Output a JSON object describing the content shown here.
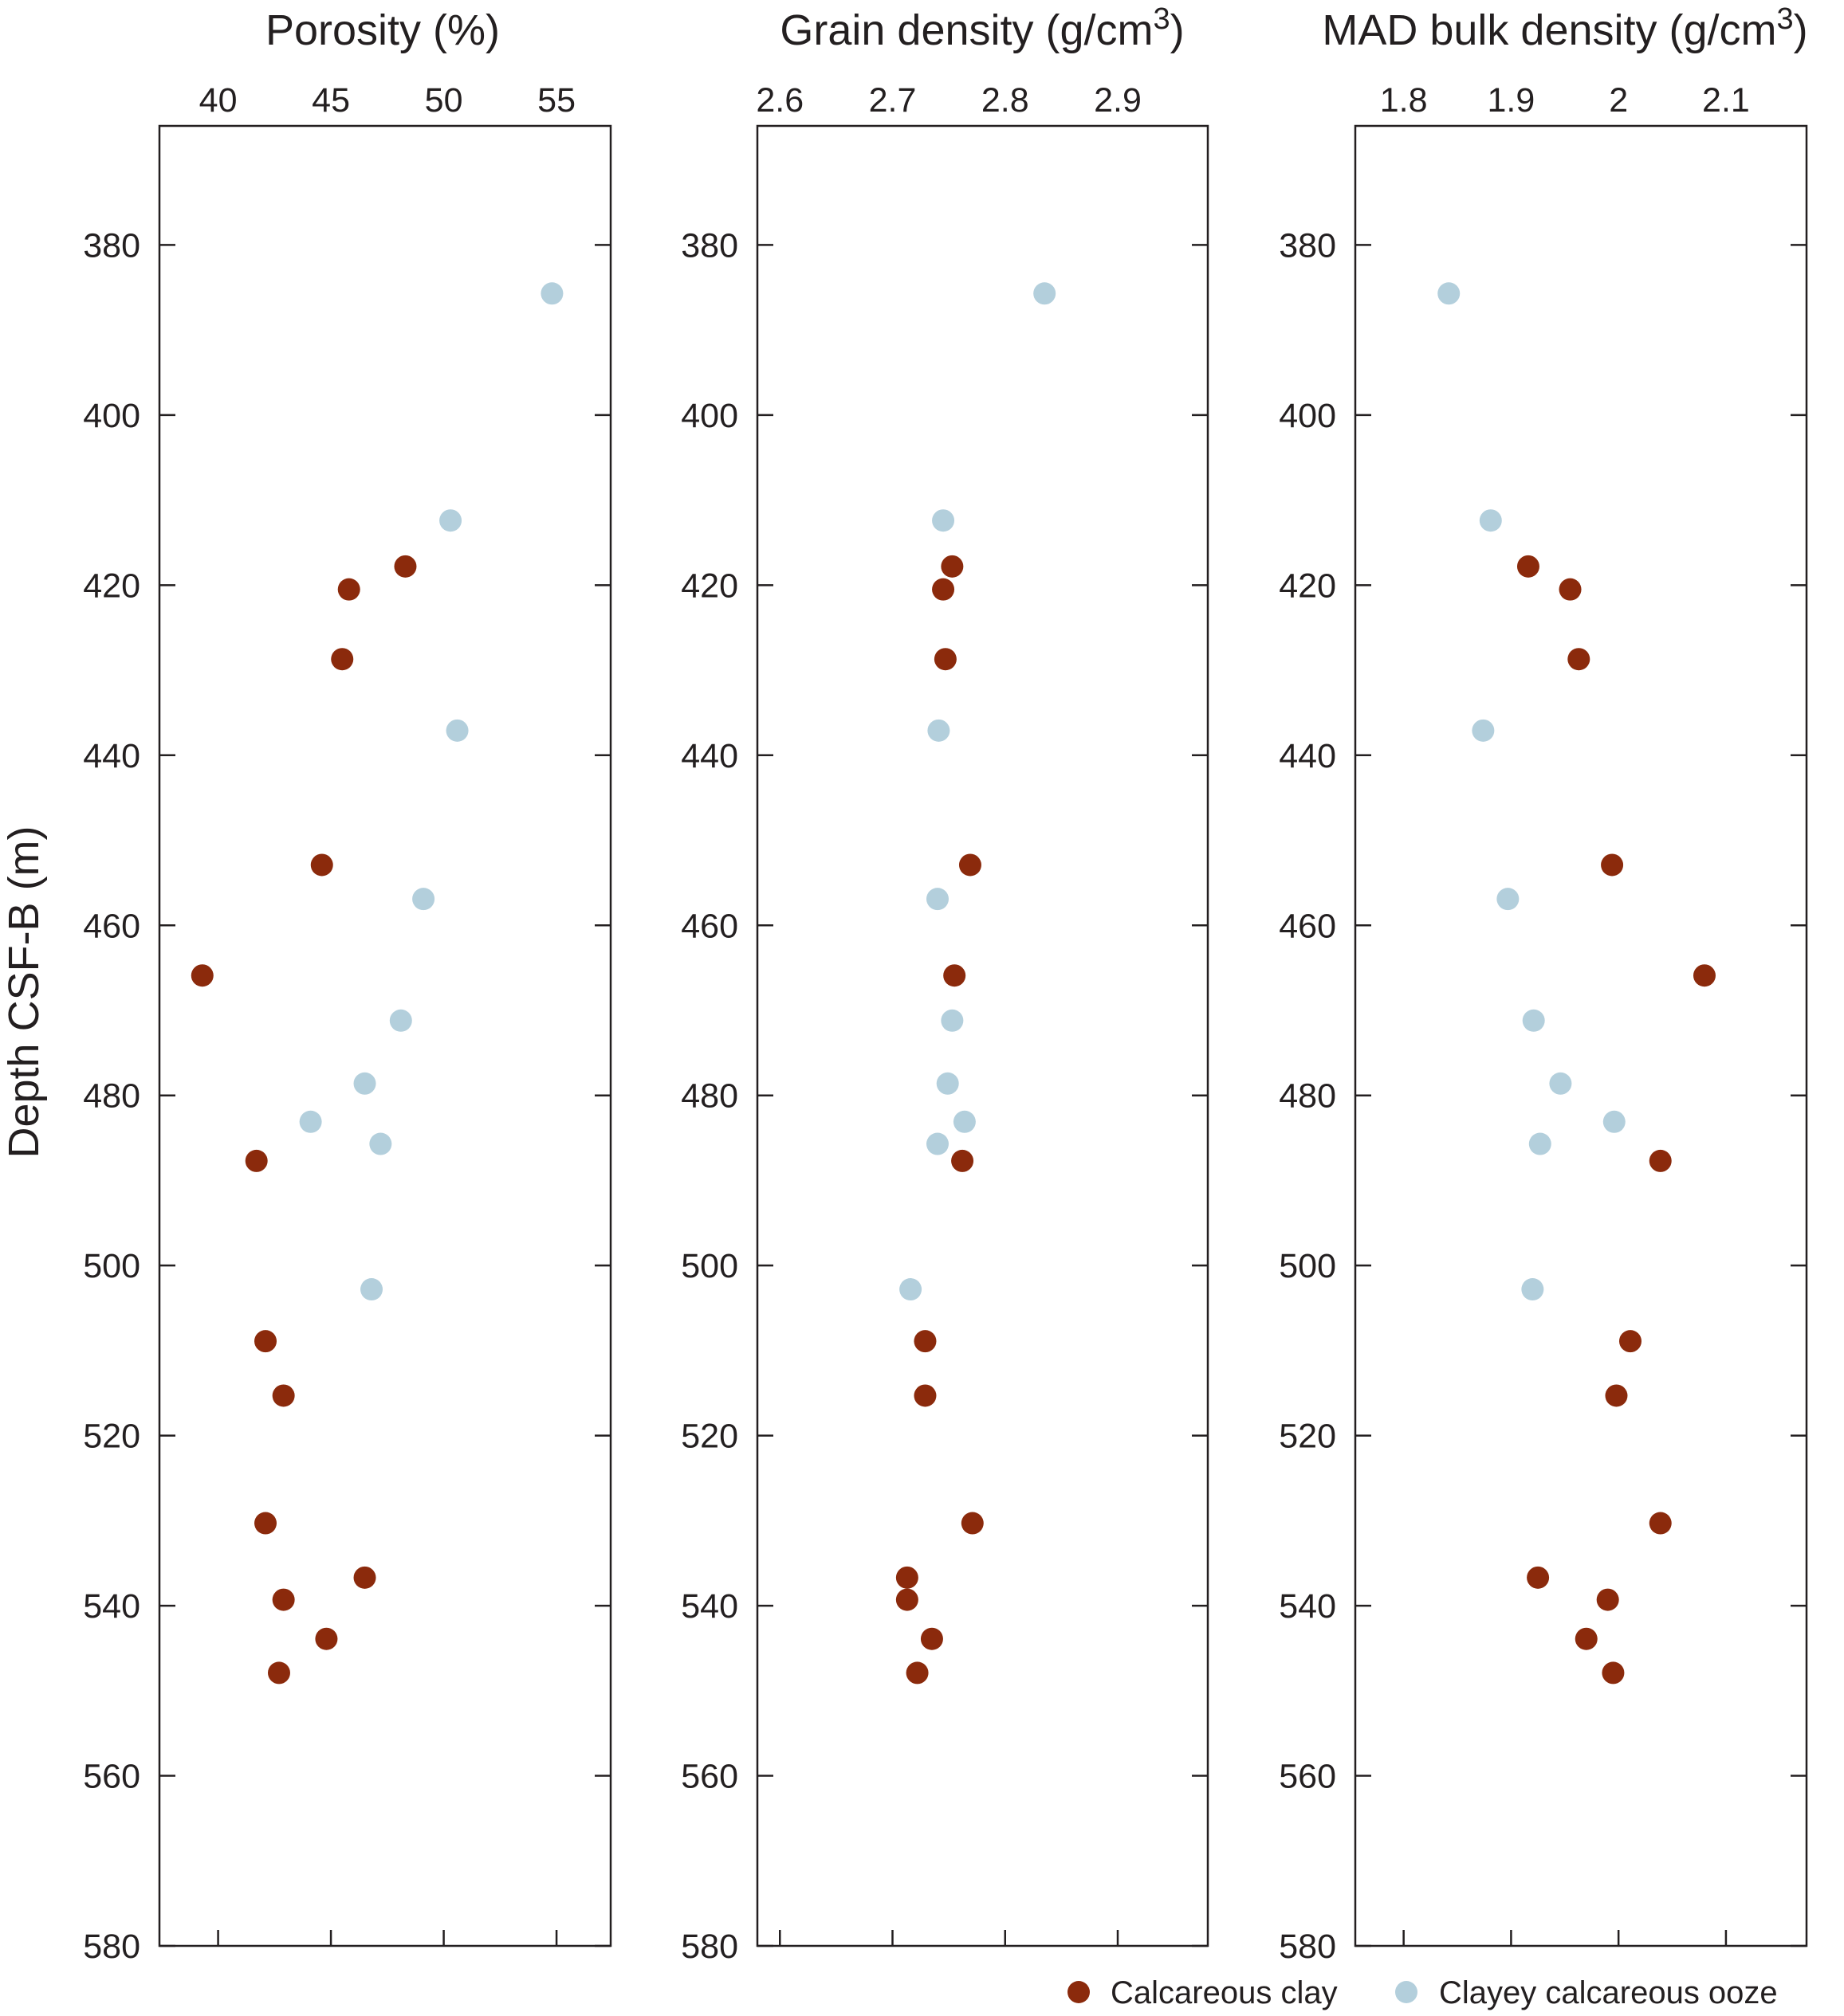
{
  "chart_data": {
    "type": "scatter",
    "y_axis": {
      "label": "Depth CSF-B (m)",
      "range": [
        366,
        580
      ],
      "reversed": true,
      "ticks": [
        "380",
        "400",
        "420",
        "440",
        "460",
        "480",
        "500",
        "520",
        "540",
        "560",
        "580"
      ]
    },
    "legend": {
      "position": "bottom-right",
      "entries": [
        {
          "name": "Calcareous clay",
          "color": "#8b2a0c"
        },
        {
          "name": "Clayey calcareous ooze",
          "color": "#b3cfdc"
        }
      ]
    },
    "panels": [
      {
        "title": "Porosity (%)",
        "title_sup": "",
        "title_end": "",
        "xlim": [
          37.4,
          57.4
        ],
        "x_ticks": [
          "40",
          "45",
          "50",
          "55"
        ],
        "series": [
          {
            "name": "Calcareous clay",
            "points": [
              [
                48.3,
                417.8
              ],
              [
                45.8,
                420.5
              ],
              [
                45.5,
                428.7
              ],
              [
                44.6,
                452.9
              ],
              [
                39.3,
                465.9
              ],
              [
                41.7,
                487.7
              ],
              [
                42.1,
                508.9
              ],
              [
                42.9,
                515.3
              ],
              [
                42.1,
                530.3
              ],
              [
                46.5,
                536.7
              ],
              [
                42.9,
                539.3
              ],
              [
                44.8,
                543.9
              ],
              [
                42.7,
                547.9
              ]
            ]
          },
          {
            "name": "Clayey calcareous ooze",
            "points": [
              [
                54.8,
                385.7
              ],
              [
                50.3,
                412.4
              ],
              [
                50.6,
                437.1
              ],
              [
                49.1,
                456.9
              ],
              [
                48.1,
                471.2
              ],
              [
                46.5,
                478.6
              ],
              [
                44.1,
                483.1
              ],
              [
                47.2,
                485.7
              ],
              [
                46.8,
                502.8
              ]
            ]
          }
        ]
      },
      {
        "title": "Grain density (g/cm",
        "title_sup": "3",
        "title_end": ")",
        "xlim": [
          2.58,
          2.98
        ],
        "x_ticks": [
          "2.6",
          "2.7",
          "2.8",
          "2.9"
        ],
        "series": [
          {
            "name": "Calcareous clay",
            "points": [
              [
                2.753,
                417.8
              ],
              [
                2.745,
                420.5
              ],
              [
                2.747,
                428.7
              ],
              [
                2.769,
                452.9
              ],
              [
                2.755,
                465.9
              ],
              [
                2.762,
                487.7
              ],
              [
                2.729,
                508.9
              ],
              [
                2.729,
                515.3
              ],
              [
                2.771,
                530.3
              ],
              [
                2.713,
                536.7
              ],
              [
                2.713,
                539.3
              ],
              [
                2.735,
                543.9
              ],
              [
                2.722,
                547.9
              ]
            ]
          },
          {
            "name": "Clayey calcareous ooze",
            "points": [
              [
                2.835,
                385.7
              ],
              [
                2.745,
                412.4
              ],
              [
                2.741,
                437.1
              ],
              [
                2.74,
                456.9
              ],
              [
                2.753,
                471.2
              ],
              [
                2.749,
                478.6
              ],
              [
                2.764,
                483.1
              ],
              [
                2.74,
                485.7
              ],
              [
                2.716,
                502.8
              ]
            ]
          }
        ]
      },
      {
        "title": "MAD bulk density (g/cm",
        "title_sup": "3",
        "title_end": ")",
        "xlim": [
          1.755,
          2.175
        ],
        "x_ticks": [
          "1.8",
          "1.9",
          "2",
          "2.1"
        ],
        "series": [
          {
            "name": "Calcareous clay",
            "points": [
              [
                1.916,
                417.8
              ],
              [
                1.955,
                420.5
              ],
              [
                1.963,
                428.7
              ],
              [
                1.994,
                452.9
              ],
              [
                2.08,
                465.9
              ],
              [
                2.039,
                487.7
              ],
              [
                2.011,
                508.9
              ],
              [
                1.998,
                515.3
              ],
              [
                2.039,
                530.3
              ],
              [
                1.925,
                536.7
              ],
              [
                1.99,
                539.3
              ],
              [
                1.97,
                543.9
              ],
              [
                1.995,
                547.9
              ]
            ]
          },
          {
            "name": "Clayey calcareous ooze",
            "points": [
              [
                1.842,
                385.7
              ],
              [
                1.881,
                412.4
              ],
              [
                1.874,
                437.1
              ],
              [
                1.897,
                456.9
              ],
              [
                1.921,
                471.2
              ],
              [
                1.946,
                478.6
              ],
              [
                1.996,
                483.1
              ],
              [
                1.927,
                485.7
              ],
              [
                1.92,
                502.8
              ]
            ]
          }
        ]
      }
    ]
  }
}
